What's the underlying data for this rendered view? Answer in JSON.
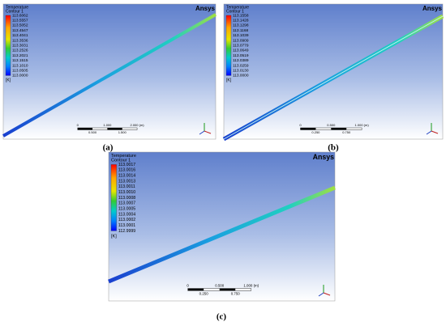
{
  "panels": [
    {
      "legend_title": "Temperature",
      "legend_subtitle": "Contour 1",
      "legend_labels": [
        "113.6062",
        "113.5557",
        "113.5052",
        "113.4547",
        "113.4041",
        "113.3536",
        "113.3031",
        "113.2526",
        "113.2021",
        "113.1515",
        "113.1010",
        "113.0505",
        "113.0000"
      ],
      "unit": "[K]",
      "brand": "Ansys",
      "scale_top": [
        "0",
        "1.000",
        "2.000 (m)"
      ],
      "scale_bottom": [
        "0.500",
        "1.500"
      ],
      "caption": "(a)"
    },
    {
      "legend_title": "Temperature",
      "legend_subtitle": "Contour 1",
      "legend_labels": [
        "113.1558",
        "113.1428",
        "113.1298",
        "113.1168",
        "113.1039",
        "113.0909",
        "113.0779",
        "113.0649",
        "113.0519",
        "113.0389",
        "113.0259",
        "113.0130",
        "113.0000"
      ],
      "unit": "[K]",
      "brand": "Ansys",
      "scale_top": [
        "0",
        "0.500",
        "1.000 (m)"
      ],
      "scale_bottom": [
        "0.250",
        "0.750"
      ],
      "caption": "(b)"
    },
    {
      "legend_title": "Temperature",
      "legend_subtitle": "Contour 1",
      "legend_labels": [
        "113.0017",
        "113.0016",
        "113.0014",
        "113.0013",
        "113.0011",
        "113.0010",
        "113.0008",
        "113.0007",
        "113.0005",
        "113.0004",
        "113.0002",
        "113.0001",
        "112.9999"
      ],
      "unit": "[K]",
      "brand": "Ansys",
      "scale_top": [
        "0",
        "0.500",
        "1.000 (m)"
      ],
      "scale_bottom": [
        "0.250",
        "0.750"
      ],
      "caption": "(c)"
    }
  ]
}
